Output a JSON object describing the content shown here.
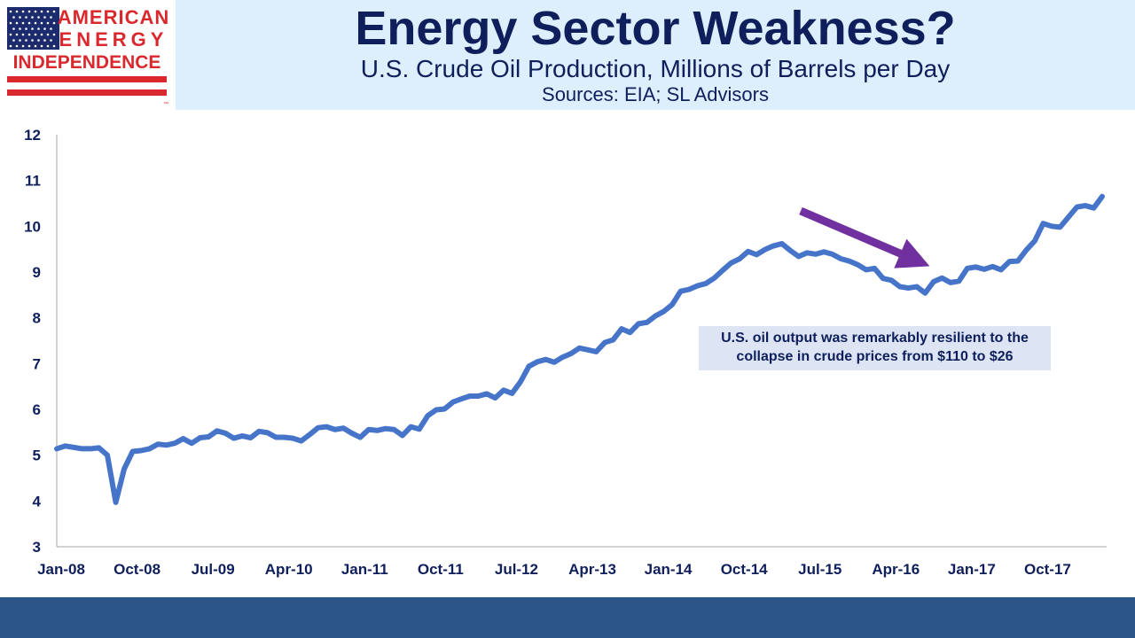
{
  "logo": {
    "line1": "AMERICAN",
    "line2": "ENERGY",
    "line3": "INDEPENDENCE",
    "tm": "™",
    "colors": {
      "red": "#d9292e",
      "blue": "#1c2a6e"
    }
  },
  "header": {
    "title": "Energy Sector Weakness?",
    "subtitle": "U.S. Crude Oil Production, Millions of Barrels per Day",
    "sources": "Sources: EIA; SL Advisors"
  },
  "annotation": {
    "text": "U.S. oil output was remarkably resilient to the collapse in crude prices from $110 to $26"
  },
  "chart_data": {
    "type": "line",
    "title": "",
    "xlabel": "",
    "ylabel": "",
    "ylim": [
      3,
      12
    ],
    "yticks": [
      "3",
      "4",
      "5",
      "6",
      "7",
      "8",
      "9",
      "10",
      "11",
      "12"
    ],
    "x_tick_labels": [
      "Jan-08",
      "Oct-08",
      "Jul-09",
      "Apr-10",
      "Jan-11",
      "Oct-11",
      "Jul-12",
      "Apr-13",
      "Jan-14",
      "Oct-14",
      "Jul-15",
      "Apr-16",
      "Jan-17",
      "Oct-17"
    ],
    "x_start": "Jan-08",
    "x_end": "May-18",
    "grid": false,
    "line_color": "#4674c9",
    "arrow_color": "#7030a0",
    "series": [
      {
        "values": [
          5.14,
          5.2,
          5.17,
          5.14,
          5.14,
          5.16,
          5.0,
          3.97,
          4.7,
          5.08,
          5.1,
          5.14,
          5.24,
          5.22,
          5.26,
          5.36,
          5.26,
          5.38,
          5.4,
          5.53,
          5.48,
          5.37,
          5.42,
          5.38,
          5.52,
          5.49,
          5.39,
          5.39,
          5.37,
          5.31,
          5.45,
          5.6,
          5.62,
          5.56,
          5.59,
          5.48,
          5.39,
          5.56,
          5.54,
          5.58,
          5.56,
          5.43,
          5.62,
          5.57,
          5.86,
          5.99,
          6.01,
          6.16,
          6.23,
          6.29,
          6.29,
          6.34,
          6.25,
          6.42,
          6.35,
          6.6,
          6.94,
          7.04,
          7.09,
          7.03,
          7.14,
          7.22,
          7.34,
          7.3,
          7.26,
          7.46,
          7.52,
          7.76,
          7.68,
          7.87,
          7.9,
          8.04,
          8.14,
          8.29,
          8.58,
          8.62,
          8.7,
          8.75,
          8.87,
          9.04,
          9.2,
          9.29,
          9.45,
          9.38,
          9.49,
          9.57,
          9.62,
          9.47,
          9.34,
          9.42,
          9.39,
          9.44,
          9.39,
          9.29,
          9.24,
          9.16,
          9.05,
          9.08,
          8.86,
          8.82,
          8.68,
          8.65,
          8.68,
          8.54,
          8.79,
          8.87,
          8.77,
          8.8,
          9.08,
          9.11,
          9.06,
          9.12,
          9.05,
          9.23,
          9.24,
          9.48,
          9.68,
          10.06,
          10.0,
          9.98,
          10.2,
          10.42,
          10.45,
          10.4,
          10.65
        ]
      }
    ]
  }
}
